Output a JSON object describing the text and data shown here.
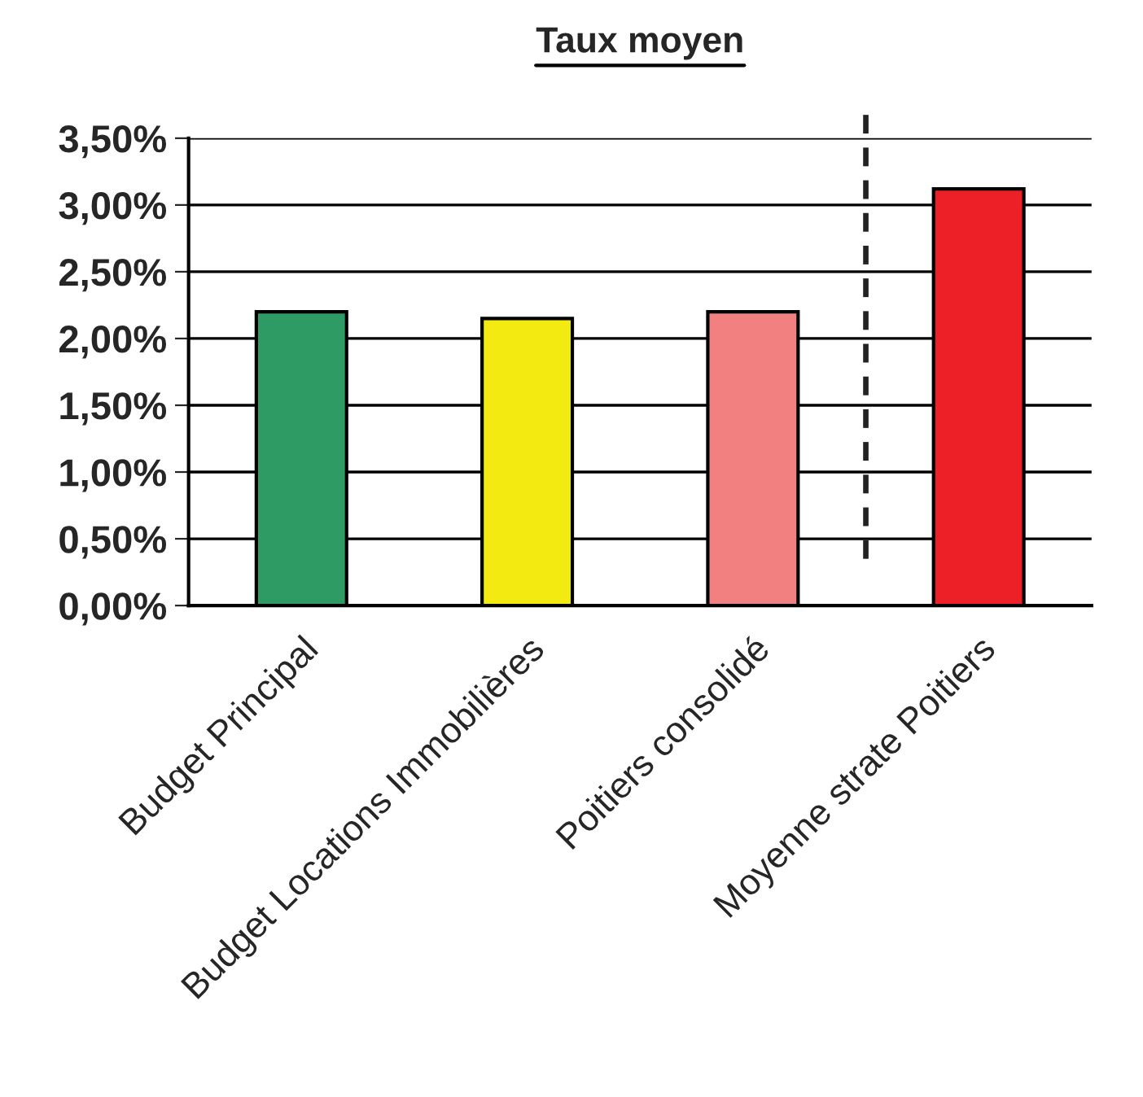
{
  "chart_data": {
    "type": "bar",
    "title": "Taux moyen",
    "categories": [
      "Budget Principal",
      "Budget Locations Immobilières",
      "Poitiers consolidé",
      "Moyenne strate Poitiers"
    ],
    "values": [
      2.2,
      2.15,
      2.2,
      3.12
    ],
    "colors": [
      "#2e9a64",
      "#f2ea10",
      "#f38080",
      "#ee2027"
    ],
    "ylim": [
      0,
      3.5
    ],
    "yticks": [
      {
        "value": 0,
        "label": "0,00%"
      },
      {
        "value": 0.5,
        "label": "0,50%"
      },
      {
        "value": 1,
        "label": "1,00%"
      },
      {
        "value": 1.5,
        "label": "1,50%"
      },
      {
        "value": 2,
        "label": "2,00%"
      },
      {
        "value": 2.5,
        "label": "2,50%"
      },
      {
        "value": 3,
        "label": "3,00%"
      },
      {
        "value": 3.5,
        "label": "3,50%"
      }
    ],
    "grid": "y"
  }
}
